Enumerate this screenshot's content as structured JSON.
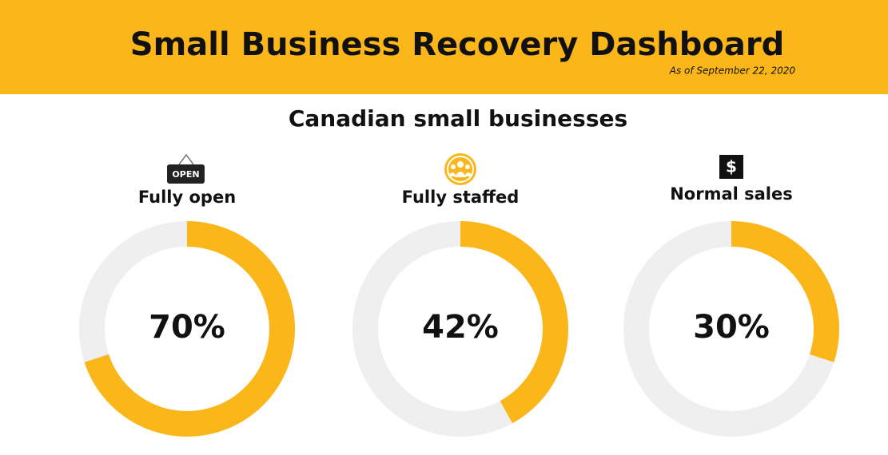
{
  "header": {
    "title": "Small Business Recovery Dashboard",
    "subtitle": "As of September 22, 2020"
  },
  "section_title": "Canadian small businesses",
  "chart_data": [
    {
      "type": "donut",
      "title": "Fully open",
      "icon_label": "OPEN",
      "values": [
        70
      ],
      "value_labels": [
        "70%"
      ],
      "ylim": [
        0,
        100
      ],
      "color": "#fbb619",
      "track_color": "#efefef"
    },
    {
      "type": "donut",
      "title": "Fully staffed",
      "values": [
        42
      ],
      "value_labels": [
        "42%"
      ],
      "ylim": [
        0,
        100
      ],
      "color": "#fbb619",
      "track_color": "#efefef"
    },
    {
      "type": "donut",
      "title": "Normal sales",
      "icon_label": "$",
      "values": [
        30
      ],
      "value_labels": [
        "30%"
      ],
      "ylim": [
        0,
        100
      ],
      "color": "#fbb619",
      "track_color": "#efefef"
    }
  ]
}
